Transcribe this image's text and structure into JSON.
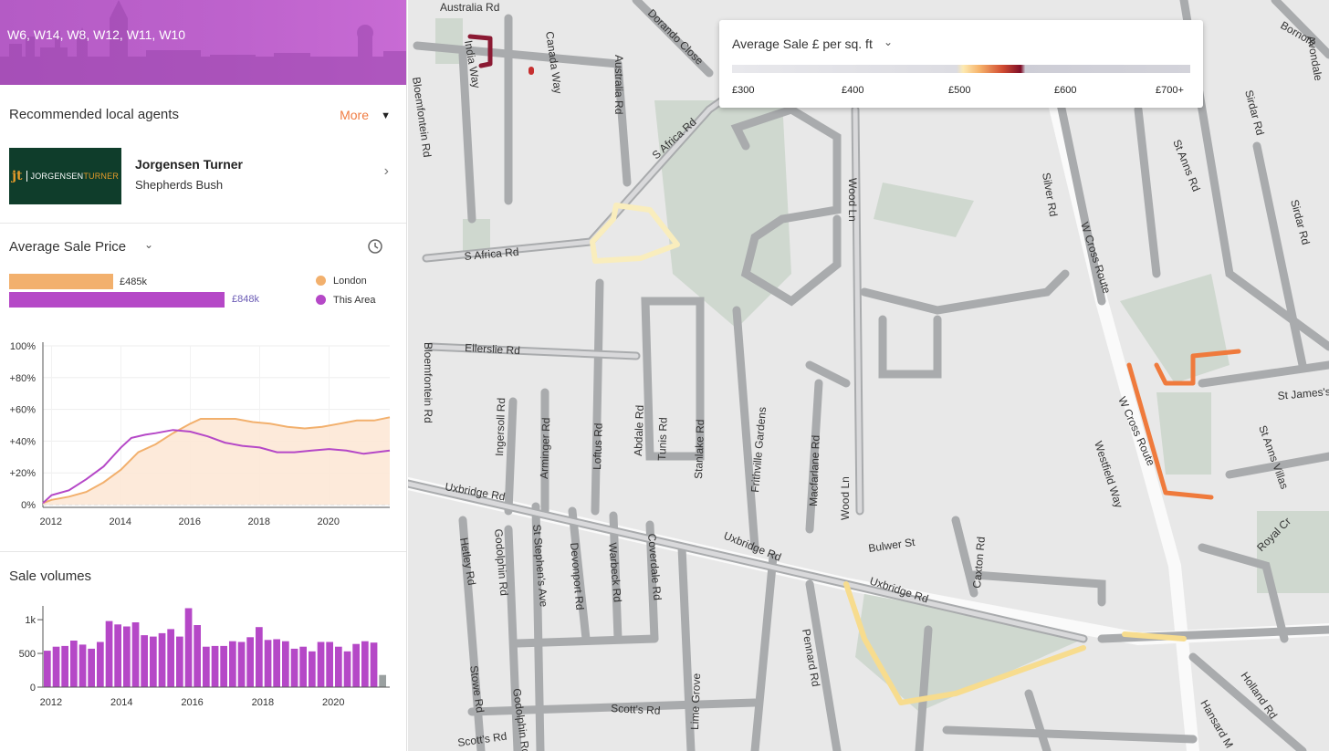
{
  "banner": {
    "postcodes": "W6, W14, W8, W12, W11, W10"
  },
  "agents": {
    "header": "Recommended local agents",
    "more_label": "More",
    "agent": {
      "name": "Jorgensen Turner",
      "area": "Shepherds Bush",
      "logo_mark": "jt",
      "logo_name_1": "JORGENSEN",
      "logo_name_2": "TURNER"
    }
  },
  "price": {
    "header": "Average Sale Price",
    "comparison": [
      {
        "name": "London",
        "label": "£485k",
        "value": 485,
        "color": "#f2b06d"
      },
      {
        "name": "This Area",
        "label": "£848k",
        "value": 848,
        "color": "#b548c7"
      }
    ],
    "legend": [
      "London",
      "This Area"
    ]
  },
  "volumes": {
    "header": "Sale volumes"
  },
  "chart_data": [
    {
      "type": "area",
      "ylabel": "",
      "xlabel": "",
      "y_ticks": [
        "100%",
        "+80%",
        "+60%",
        "+40%",
        "+20%",
        "0%"
      ],
      "x_ticks": [
        "2012",
        "2014",
        "2016",
        "2018",
        "2020"
      ],
      "ylim": [
        0,
        100
      ],
      "xlim": [
        2011.75,
        2021.75
      ],
      "series": [
        {
          "name": "London",
          "color": "#f2b06d",
          "x": [
            2011.75,
            2012.0,
            2012.5,
            2013.0,
            2013.5,
            2014.0,
            2014.5,
            2015.0,
            2015.5,
            2016.0,
            2016.3,
            2016.8,
            2017.3,
            2017.8,
            2018.3,
            2018.8,
            2019.3,
            2019.8,
            2020.3,
            2020.8,
            2021.3,
            2021.75
          ],
          "y": [
            1,
            3,
            5,
            8,
            14,
            22,
            33,
            38,
            45,
            51,
            54,
            54,
            54,
            52,
            51,
            49,
            48,
            49,
            51,
            53,
            53,
            55
          ]
        },
        {
          "name": "This Area",
          "color": "#b548c7",
          "x": [
            2011.75,
            2012.0,
            2012.5,
            2013.0,
            2013.5,
            2014.0,
            2014.3,
            2014.7,
            2015.0,
            2015.5,
            2016.0,
            2016.5,
            2017.0,
            2017.5,
            2018.0,
            2018.5,
            2019.0,
            2019.5,
            2020.0,
            2020.5,
            2021.0,
            2021.75
          ],
          "y": [
            1,
            6,
            9,
            16,
            24,
            36,
            42,
            44,
            45,
            47,
            46,
            43,
            39,
            37,
            36,
            33,
            33,
            34,
            35,
            34,
            32,
            34
          ]
        }
      ]
    },
    {
      "type": "bar",
      "y_ticks": [
        "1k",
        "500",
        "0"
      ],
      "x_ticks": [
        "2012",
        "2014",
        "2016",
        "2018",
        "2020"
      ],
      "ylim": [
        0,
        1150
      ],
      "x_start": 2011.75,
      "x_step": 0.25,
      "values": [
        540,
        600,
        610,
        690,
        630,
        570,
        670,
        980,
        930,
        900,
        960,
        770,
        750,
        800,
        860,
        750,
        1170,
        920,
        600,
        610,
        610,
        680,
        670,
        740,
        890,
        700,
        710,
        680,
        570,
        600,
        530,
        670,
        670,
        600,
        530,
        640,
        680,
        660,
        180
      ],
      "bar_color": "#b548c7",
      "last_bar_color": "#9aa0a0"
    }
  ],
  "map": {
    "legend_title": "Average Sale £ per sq. ft",
    "legend_ticks": [
      "£300",
      "£400",
      "£500",
      "£600",
      "£700+"
    ],
    "road_labels": [
      "Australia Rd",
      "India Way",
      "Canada Way",
      "Dorando Close",
      "Bloemfontein Rd",
      "S Africa Rd",
      "Ellerslie Rd",
      "Ingersoll Rd",
      "Arminger Rd",
      "Loftus Rd",
      "Abdale Rd",
      "Tunis Rd",
      "Stanlake Rd",
      "Frithville Gardens",
      "Macfarlane Rd",
      "Wood Ln",
      "Silver Rd",
      "W Cross Route",
      "Westfield Way",
      "St Anns Rd",
      "Sirdar Rd",
      "St James's",
      "St Anns Villas",
      "Royal Cr",
      "Uxbridge Rd",
      "Bulwer St",
      "Caxton Rd",
      "Hetley Rd",
      "Godolphin Rd",
      "St Stephen's Ave",
      "Devonport Rd",
      "Warbeck Rd",
      "Coverdale Rd",
      "Stowe Rd",
      "Lime Grove",
      "Pennard Rd",
      "Scott's Rd",
      "Holland Rd",
      "Hansard M",
      "Avondale",
      "Bornore"
    ]
  },
  "colors": {
    "accent": "#f07c42",
    "area": "#b548c7",
    "london": "#f2b06d",
    "banner": "#bd62cc"
  }
}
